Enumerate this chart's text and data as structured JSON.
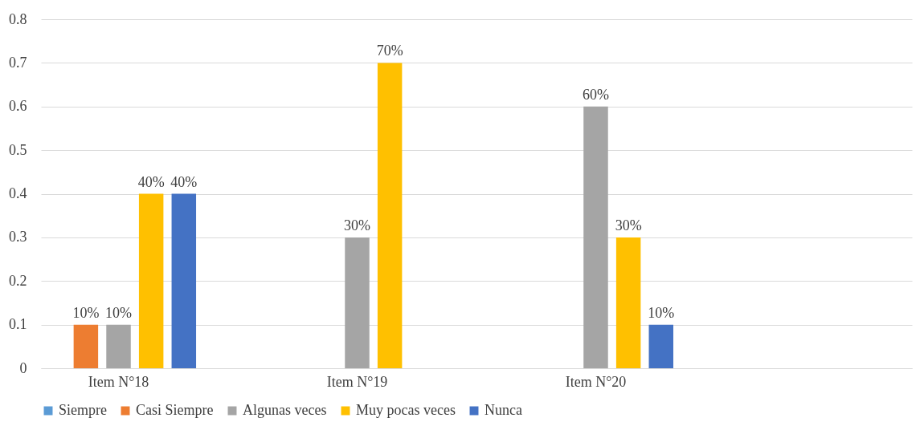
{
  "chart_data": {
    "type": "bar",
    "categories": [
      "Item N°18",
      "Item N°19",
      "Item N°20",
      null
    ],
    "series": [
      {
        "name": "Siempre",
        "color": "#5b9bd5",
        "values": [
          null,
          null,
          null,
          null
        ],
        "value_labels": [
          null,
          null,
          null,
          null
        ]
      },
      {
        "name": "Casi Siempre",
        "color": "#ed7d31",
        "values": [
          0.1,
          null,
          null,
          null
        ],
        "value_labels": [
          "10%",
          null,
          null,
          null
        ]
      },
      {
        "name": "Algunas veces",
        "color": "#a5a5a5",
        "values": [
          0.1,
          0.3,
          0.6,
          null
        ],
        "value_labels": [
          "10%",
          "30%",
          "60%",
          null
        ]
      },
      {
        "name": "Muy pocas veces",
        "color": "#ffc000",
        "values": [
          0.4,
          0.7,
          0.3,
          null
        ],
        "value_labels": [
          "40%",
          "70%",
          "30%",
          null
        ]
      },
      {
        "name": "Nunca",
        "color": "#4472c4",
        "values": [
          0.4,
          null,
          0.1,
          null
        ],
        "value_labels": [
          "40%",
          null,
          "10%",
          null
        ]
      }
    ],
    "ylim": [
      0,
      0.8
    ],
    "yticks": [
      0,
      0.1,
      0.2,
      0.3,
      0.4,
      0.5,
      0.6,
      0.7,
      0.8
    ],
    "grid": "y",
    "legend": "bottom"
  }
}
